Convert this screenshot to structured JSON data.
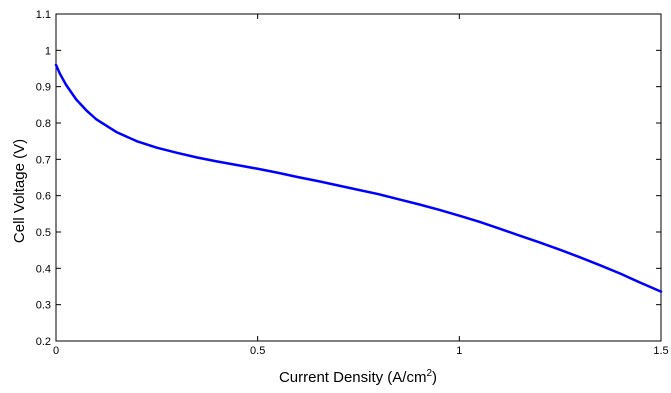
{
  "chart_data": {
    "type": "line",
    "title": "",
    "xlabel": "Current Density (A/cm",
    "xlabel_superscript": "2",
    "xlabel_suffix": ")",
    "ylabel": "Cell Voltage (V)",
    "xlim": [
      0,
      1.5
    ],
    "ylim": [
      0.2,
      1.1
    ],
    "x_ticks": [
      0,
      0.5,
      1,
      1.5
    ],
    "x_tick_labels": [
      "0",
      "0.5",
      "1",
      "1.5"
    ],
    "y_ticks": [
      0.2,
      0.3,
      0.4,
      0.5,
      0.6,
      0.7,
      0.8,
      0.9,
      1.0,
      1.1
    ],
    "y_tick_labels": [
      "0.2",
      "0.3",
      "0.4",
      "0.5",
      "0.6",
      "0.7",
      "0.8",
      "0.9",
      "1",
      "1.1"
    ],
    "grid": false,
    "line_color": "#0000ff",
    "series": [
      {
        "x": [
          0,
          0.01,
          0.025,
          0.05,
          0.075,
          0.1,
          0.15,
          0.2,
          0.25,
          0.3,
          0.35,
          0.4,
          0.45,
          0.5,
          0.55,
          0.6,
          0.65,
          0.7,
          0.75,
          0.8,
          0.85,
          0.9,
          0.95,
          1.0,
          1.05,
          1.1,
          1.15,
          1.2,
          1.25,
          1.3,
          1.35,
          1.4,
          1.45,
          1.5
        ],
        "values": [
          0.96,
          0.935,
          0.905,
          0.865,
          0.835,
          0.81,
          0.775,
          0.75,
          0.732,
          0.718,
          0.705,
          0.694,
          0.684,
          0.674,
          0.663,
          0.651,
          0.64,
          0.628,
          0.616,
          0.604,
          0.59,
          0.576,
          0.561,
          0.545,
          0.528,
          0.509,
          0.49,
          0.471,
          0.451,
          0.43,
          0.408,
          0.385,
          0.36,
          0.336
        ]
      }
    ]
  }
}
